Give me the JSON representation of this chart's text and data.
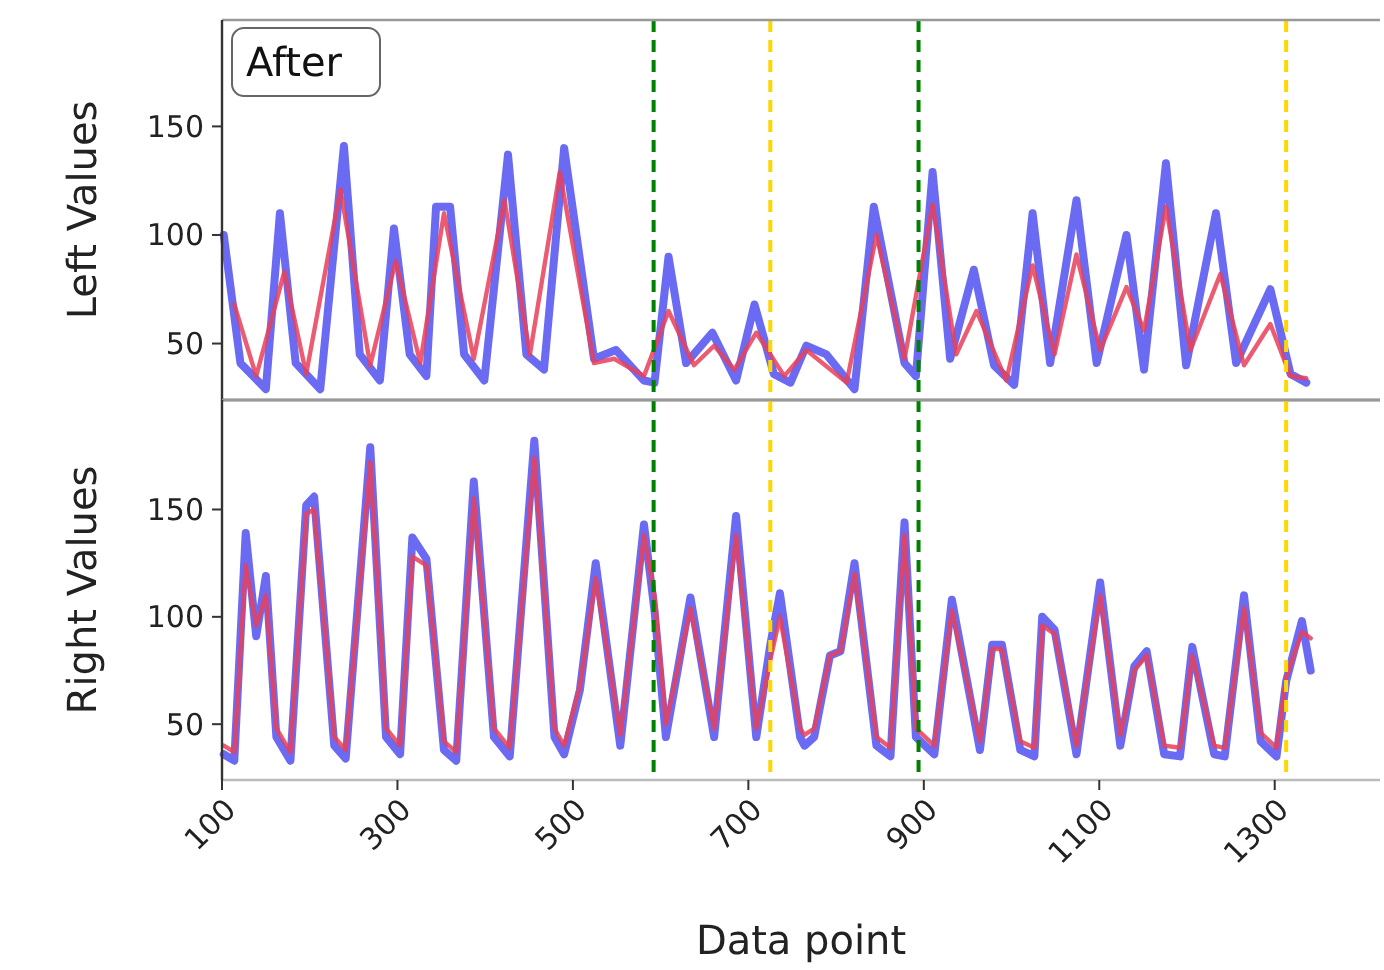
{
  "chart_data": [
    {
      "type": "line",
      "ylabel": "Left Values",
      "annotations": [
        "After"
      ],
      "xlim": [
        100,
        1420
      ],
      "ylim": [
        24,
        199
      ],
      "yticks": [
        50,
        100,
        150
      ],
      "tick_labels": "y",
      "series": [
        {
          "color": "#5050f0",
          "x": [
            102,
            121,
            150,
            166,
            184,
            212,
            239,
            257,
            280,
            296,
            314,
            333,
            344,
            360,
            376,
            399,
            426,
            447,
            467,
            490,
            524,
            549,
            581,
            593,
            609,
            629,
            659,
            686,
            707,
            729,
            748,
            766,
            789,
            821,
            843,
            878,
            891,
            910,
            930,
            957,
            980,
            1003,
            1024,
            1044,
            1074,
            1097,
            1131,
            1151,
            1176,
            1199,
            1233,
            1256,
            1295,
            1318,
            1336
          ],
          "values": [
            100,
            41,
            29,
            110,
            41,
            29,
            141,
            45,
            33,
            103,
            45,
            35,
            113,
            113,
            45,
            33,
            137,
            45,
            38,
            140,
            43,
            47,
            33,
            32,
            90,
            41,
            55,
            33,
            68,
            36,
            32,
            49,
            45,
            29,
            113,
            41,
            35,
            129,
            43,
            84,
            40,
            31,
            110,
            41,
            116,
            41,
            100,
            38,
            133,
            40,
            110,
            41,
            75,
            36,
            32
          ]
        },
        {
          "color": "#e8405a",
          "x": [
            114,
            139,
            171,
            196,
            235,
            269,
            298,
            326,
            353,
            387,
            422,
            451,
            485,
            524,
            547,
            581,
            609,
            638,
            661,
            684,
            709,
            741,
            766,
            812,
            846,
            878,
            910,
            937,
            960,
            994,
            1024,
            1049,
            1074,
            1101,
            1131,
            1151,
            1176,
            1204,
            1238,
            1265,
            1295,
            1318,
            1336
          ],
          "values": [
            68,
            35,
            83,
            36,
            121,
            40,
            88,
            41,
            110,
            43,
            116,
            45,
            129,
            41,
            43,
            35,
            65,
            40,
            49,
            38,
            55,
            35,
            47,
            32,
            100,
            43,
            114,
            45,
            65,
            33,
            86,
            45,
            91,
            47,
            76,
            56,
            113,
            47,
            82,
            40,
            59,
            35,
            34
          ]
        }
      ],
      "ref_lines": [
        {
          "axis": "x",
          "value": 592,
          "color": "#008000",
          "line_style": "dashed"
        },
        {
          "axis": "x",
          "value": 725,
          "color": "#ffd700",
          "line_style": "dashed"
        },
        {
          "axis": "x",
          "value": 894,
          "color": "#008000",
          "line_style": "dashed"
        },
        {
          "axis": "x",
          "value": 1313,
          "color": "#ffd700",
          "line_style": "dashed"
        }
      ]
    },
    {
      "type": "line",
      "xlabel": "Data point",
      "ylabel": "Right Values",
      "xlim": [
        100,
        1420
      ],
      "ylim": [
        24,
        201
      ],
      "xticks": [
        100,
        300,
        500,
        700,
        900,
        1100,
        1300
      ],
      "yticks": [
        50,
        100,
        150
      ],
      "series": [
        {
          "color": "#5050f0",
          "x": [
            102,
            114,
            127,
            139,
            150,
            162,
            178,
            196,
            205,
            228,
            241,
            269,
            287,
            303,
            317,
            333,
            353,
            367,
            387,
            410,
            428,
            456,
            479,
            490,
            508,
            526,
            554,
            581,
            593,
            606,
            634,
            661,
            686,
            709,
            725,
            736,
            759,
            764,
            775,
            793,
            805,
            821,
            846,
            862,
            878,
            891,
            912,
            932,
            964,
            978,
            989,
            1010,
            1026,
            1035,
            1049,
            1074,
            1101,
            1124,
            1140,
            1154,
            1174,
            1192,
            1206,
            1231,
            1243,
            1265,
            1284,
            1302,
            1313,
            1331,
            1341
          ],
          "values": [
            36,
            33,
            139,
            91,
            119,
            44,
            33,
            152,
            156,
            40,
            34,
            179,
            44,
            36,
            137,
            127,
            38,
            33,
            163,
            44,
            35,
            182,
            44,
            36,
            66,
            125,
            40,
            143,
            103,
            44,
            109,
            44,
            147,
            44,
            87,
            111,
            44,
            40,
            44,
            82,
            84,
            125,
            40,
            35,
            144,
            44,
            36,
            108,
            38,
            87,
            87,
            38,
            35,
            100,
            94,
            36,
            116,
            40,
            77,
            84,
            36,
            35,
            86,
            36,
            35,
            110,
            42,
            35,
            70,
            98,
            75
          ]
        },
        {
          "color": "#e8405a",
          "x": [
            102,
            114,
            127,
            139,
            150,
            162,
            178,
            196,
            205,
            228,
            241,
            269,
            287,
            303,
            317,
            333,
            353,
            367,
            387,
            410,
            428,
            456,
            479,
            490,
            508,
            526,
            554,
            581,
            593,
            606,
            634,
            661,
            686,
            709,
            725,
            736,
            759,
            764,
            775,
            793,
            805,
            821,
            846,
            862,
            878,
            891,
            912,
            932,
            964,
            978,
            989,
            1010,
            1026,
            1035,
            1049,
            1074,
            1101,
            1124,
            1140,
            1154,
            1174,
            1192,
            1206,
            1231,
            1243,
            1265,
            1284,
            1302,
            1313,
            1331,
            1341
          ],
          "values": [
            40,
            37,
            124,
            96,
            110,
            48,
            37,
            148,
            150,
            44,
            38,
            172,
            48,
            40,
            128,
            124,
            42,
            37,
            155,
            48,
            39,
            174,
            48,
            40,
            68,
            118,
            45,
            138,
            110,
            50,
            104,
            48,
            138,
            48,
            80,
            100,
            48,
            45,
            48,
            82,
            84,
            120,
            44,
            39,
            138,
            48,
            40,
            103,
            42,
            85,
            85,
            42,
            39,
            96,
            92,
            40,
            110,
            45,
            75,
            82,
            40,
            39,
            82,
            40,
            39,
            104,
            46,
            39,
            72,
            93,
            90
          ]
        }
      ],
      "ref_lines": [
        {
          "axis": "x",
          "value": 592,
          "color": "#008000",
          "line_style": "dashed"
        },
        {
          "axis": "x",
          "value": 725,
          "color": "#ffd700",
          "line_style": "dashed"
        },
        {
          "axis": "x",
          "value": 894,
          "color": "#008000",
          "line_style": "dashed"
        },
        {
          "axis": "x",
          "value": 1313,
          "color": "#ffd700",
          "line_style": "dashed"
        }
      ]
    }
  ]
}
